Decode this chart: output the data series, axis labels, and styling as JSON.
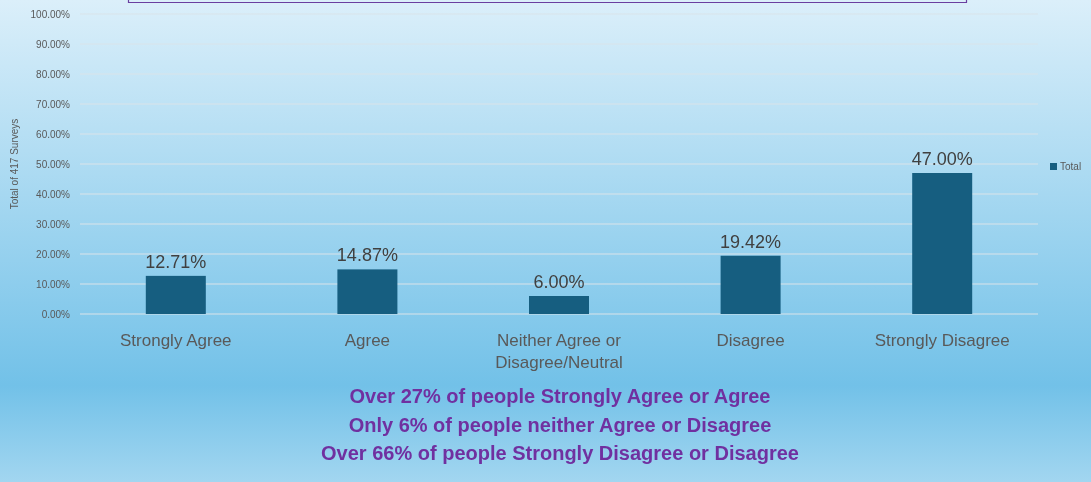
{
  "chart_data": {
    "type": "bar",
    "ylabel": "Total of 417 Surveys",
    "categories": [
      "Strongly Agree",
      "Agree",
      "Neither Agree or Disagree/Neutral",
      "Disagree",
      "Strongly Disagree"
    ],
    "series": [
      {
        "name": "Total",
        "color": "#165e80",
        "values": [
          12.71,
          14.87,
          6.0,
          19.42,
          47.0
        ],
        "value_labels": [
          "12.71%",
          "14.87%",
          "6.00%",
          "19.42%",
          "47.00%"
        ]
      }
    ],
    "ylim": [
      0,
      100
    ],
    "yticks": [
      {
        "value": 0,
        "label": "0.00%"
      },
      {
        "value": 10,
        "label": "10.00%"
      },
      {
        "value": 20,
        "label": "20.00%"
      },
      {
        "value": 30,
        "label": "30.00%"
      },
      {
        "value": 40,
        "label": "40.00%"
      },
      {
        "value": 50,
        "label": "50.00%"
      },
      {
        "value": 60,
        "label": "60.00%"
      },
      {
        "value": 70,
        "label": "70.00%"
      },
      {
        "value": 80,
        "label": "80.00%"
      },
      {
        "value": 90,
        "label": "90.00%"
      },
      {
        "value": 100,
        "label": "100.00%"
      }
    ],
    "grid": "y",
    "legend": "right",
    "annotations": [
      "Over 27% of people Strongly Agree or Agree",
      "Only 6% of people neither Agree or Disagree",
      "Over 66% of people Strongly Disagree or Disagree"
    ]
  }
}
